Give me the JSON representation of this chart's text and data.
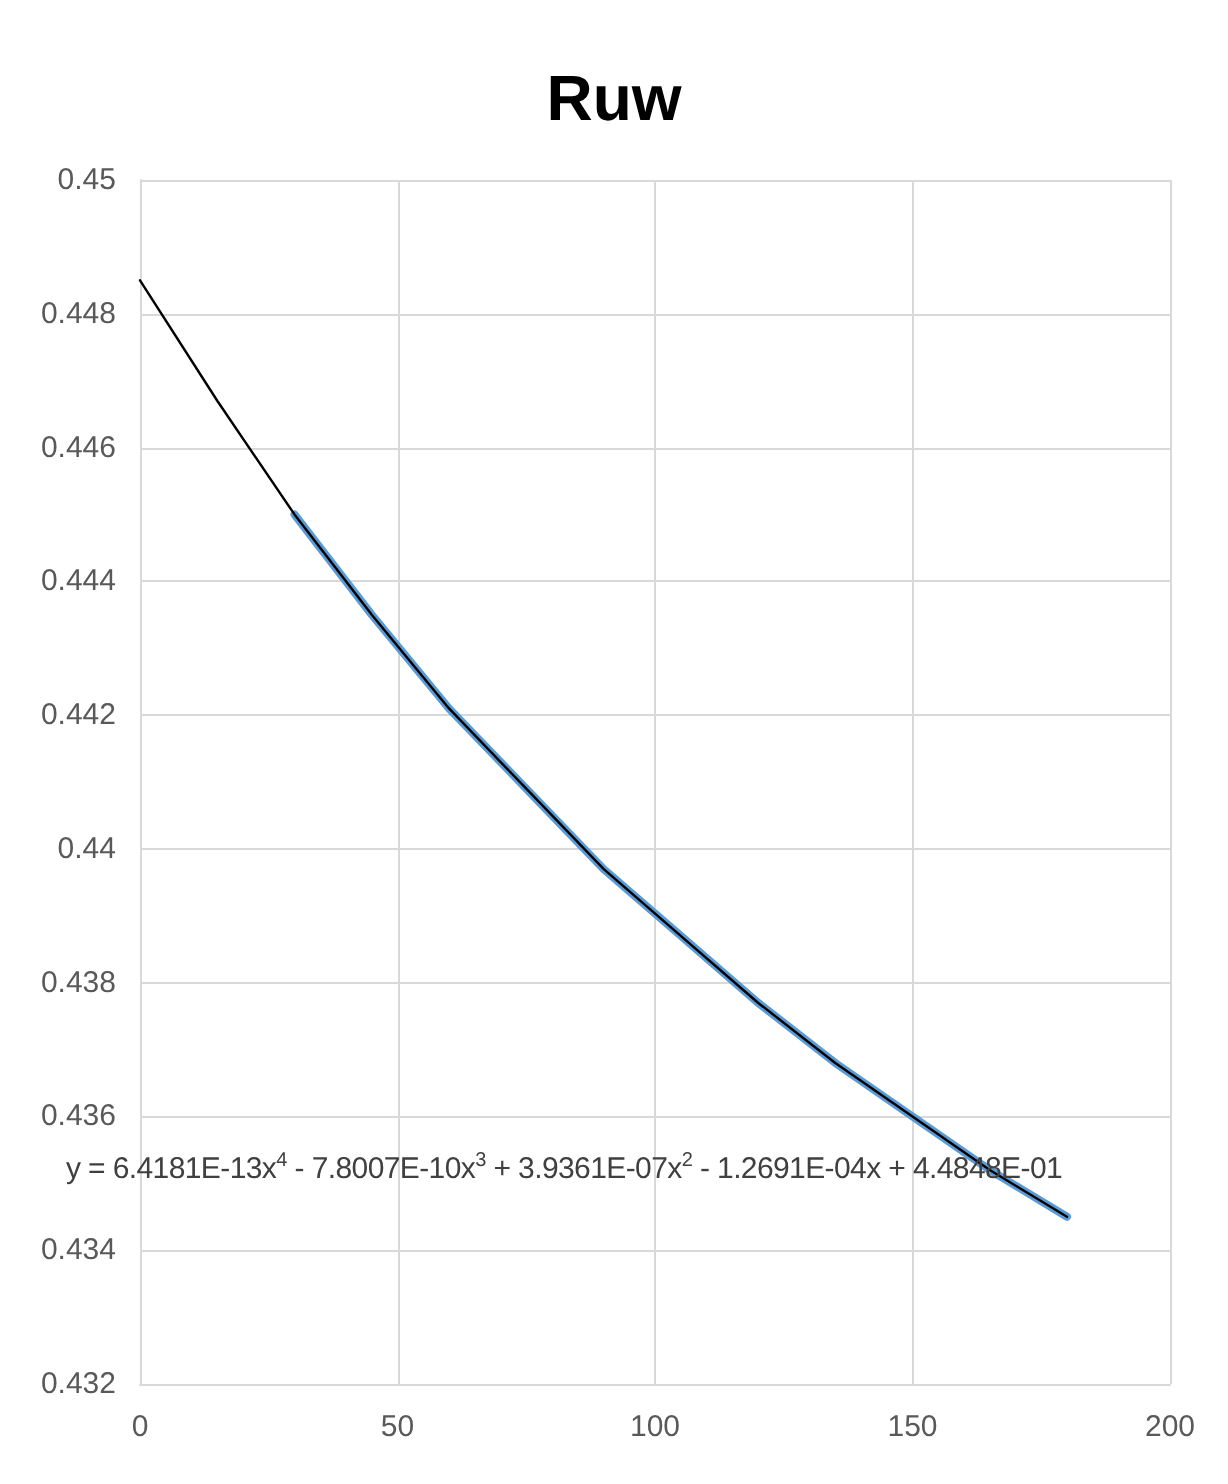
{
  "chart_data": {
    "type": "line",
    "title": "Ruw",
    "series": [
      {
        "color": "#5b9bd5",
        "x": [
          30,
          45,
          60,
          75,
          90,
          105,
          120,
          135,
          150,
          165,
          180
        ],
        "values": [
          0.445,
          0.4435,
          0.4421,
          0.4409,
          0.4397,
          0.4387,
          0.4377,
          0.4368,
          0.436,
          0.4352,
          0.4345
        ]
      },
      {
        "color": "#000000",
        "x": [
          0,
          15,
          30,
          45,
          60,
          75,
          90,
          105,
          120,
          135,
          150,
          165,
          180
        ],
        "values": [
          0.4485,
          0.4467,
          0.445,
          0.4435,
          0.4421,
          0.4409,
          0.4397,
          0.4387,
          0.4377,
          0.4368,
          0.436,
          0.4352,
          0.4345
        ]
      }
    ],
    "xlim": [
      0,
      200
    ],
    "xticks": [
      0,
      50,
      100,
      150,
      200
    ],
    "ylim": [
      0.432,
      0.45
    ],
    "yticks": [
      0.432,
      0.434,
      0.436,
      0.438,
      0.44,
      0.442,
      0.444,
      0.446,
      0.448,
      0.45
    ],
    "grid": true,
    "marker": "none",
    "annotations": [
      "y = 6.4181E-13x$^{4}$ - 7.8007E-10x$^{3}$ + 3.9361E-07x$^{2}$ - 1.2691E-04x + 4.4848E-01"
    ]
  }
}
